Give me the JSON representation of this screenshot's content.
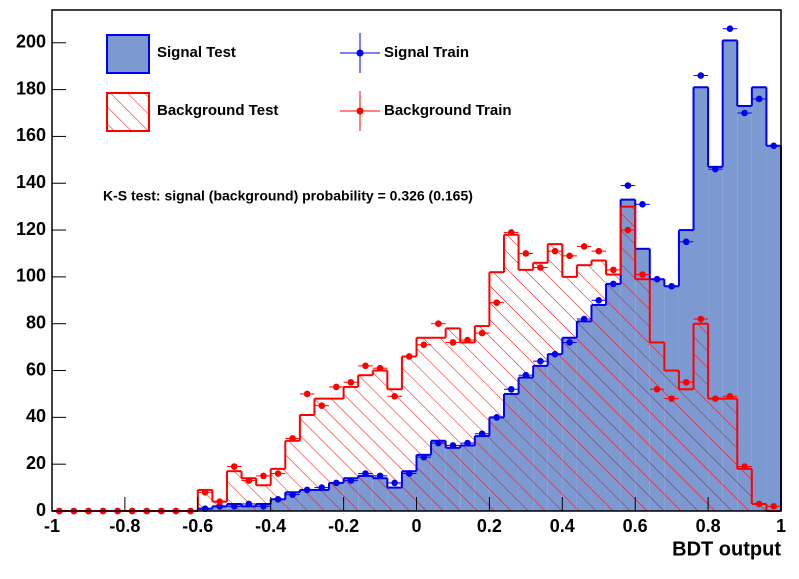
{
  "chart_data": {
    "type": "histogram",
    "x_label": "BDT output",
    "annotation": "K-S test: signal (background) probability = 0.326 (0.165)",
    "xlim": [
      -1,
      1
    ],
    "ylim": [
      0,
      214
    ],
    "xticks": [
      -1,
      -0.8,
      -0.6,
      -0.4,
      -0.2,
      0,
      0.2,
      0.4,
      0.6,
      0.8,
      1
    ],
    "yticks": [
      0,
      20,
      40,
      60,
      80,
      100,
      120,
      140,
      160,
      180,
      200
    ],
    "bins": [
      -1,
      -0.96,
      -0.92,
      -0.88,
      -0.84,
      -0.8,
      -0.76,
      -0.72,
      -0.68,
      -0.64,
      -0.6,
      -0.56,
      -0.52,
      -0.48,
      -0.44,
      -0.4,
      -0.36,
      -0.32,
      -0.28,
      -0.24,
      -0.2,
      -0.16,
      -0.12,
      -0.08,
      -0.04,
      0,
      0.04,
      0.08,
      0.12,
      0.16,
      0.2,
      0.24,
      0.28,
      0.32,
      0.36,
      0.4,
      0.44,
      0.48,
      0.52,
      0.56,
      0.6,
      0.64,
      0.68,
      0.72,
      0.76,
      0.8,
      0.84,
      0.88,
      0.92,
      0.96,
      1
    ],
    "series": [
      {
        "name": "Signal Test",
        "style": "filled",
        "color": "#0000ee",
        "fill": "#7d99d1",
        "values": [
          0,
          0,
          0,
          0,
          0,
          0,
          0,
          0,
          0,
          0,
          1,
          2,
          3,
          2,
          3,
          5,
          8,
          9,
          9,
          12,
          14,
          15,
          14,
          10,
          17,
          24,
          30,
          27,
          28,
          32,
          40,
          50,
          57,
          62,
          67,
          74,
          81,
          88,
          97,
          133,
          112,
          99,
          96,
          120,
          181,
          147,
          201,
          173,
          181,
          156
        ]
      },
      {
        "name": "Signal Train",
        "style": "points",
        "color": "#0000ee",
        "values": [
          0,
          0,
          0,
          0,
          0,
          0,
          0,
          0,
          0,
          0,
          1,
          2,
          2,
          3,
          2,
          5,
          7,
          9,
          10,
          12,
          13,
          16,
          15,
          12,
          16,
          23,
          29,
          28,
          29,
          33,
          40,
          52,
          58,
          64,
          67,
          72,
          82,
          90,
          97,
          139,
          131,
          99,
          96,
          115,
          186,
          146,
          206,
          170,
          176,
          156
        ]
      },
      {
        "name": "Background Test",
        "style": "hatched",
        "color": "#ff0000",
        "values": [
          0,
          0,
          0,
          0,
          0,
          0,
          0,
          0,
          0,
          0,
          9,
          4,
          17,
          14,
          11,
          18,
          30,
          41,
          48,
          48,
          53,
          58,
          60,
          52,
          66,
          74,
          74,
          78,
          72,
          79,
          102,
          118,
          103,
          106,
          114,
          100,
          105,
          107,
          101,
          130,
          99,
          72,
          60,
          52,
          80,
          48,
          48,
          18,
          3,
          0
        ]
      },
      {
        "name": "Background Train",
        "style": "points",
        "color": "#ff0000",
        "values": [
          0,
          0,
          0,
          0,
          0,
          0,
          0,
          0,
          0,
          0,
          8,
          4,
          19,
          13,
          15,
          16,
          31,
          50,
          45,
          53,
          55,
          62,
          61,
          49,
          66,
          71,
          80,
          72,
          73,
          76,
          89,
          119,
          110,
          104,
          111,
          109,
          113,
          111,
          103,
          120,
          101,
          52,
          48,
          55,
          82,
          48,
          49,
          19,
          3,
          2
        ]
      }
    ]
  }
}
